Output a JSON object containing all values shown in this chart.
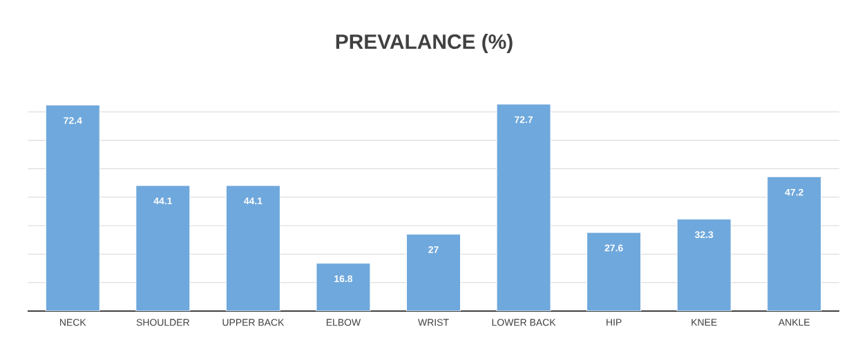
{
  "chart_data": {
    "type": "bar",
    "title": "PREVALANCE (%)",
    "categories": [
      "NECK",
      "SHOULDER",
      "UPPER BACK",
      "ELBOW",
      "WRIST",
      "LOWER BACK",
      "HIP",
      "KNEE",
      "ANKLE"
    ],
    "values": [
      72.4,
      44.1,
      44.1,
      16.8,
      27,
      72.7,
      27.6,
      32.3,
      47.2
    ],
    "color": "#6fa8dc",
    "tick_labels": "x",
    "grid": "y",
    "data_labels": true
  }
}
